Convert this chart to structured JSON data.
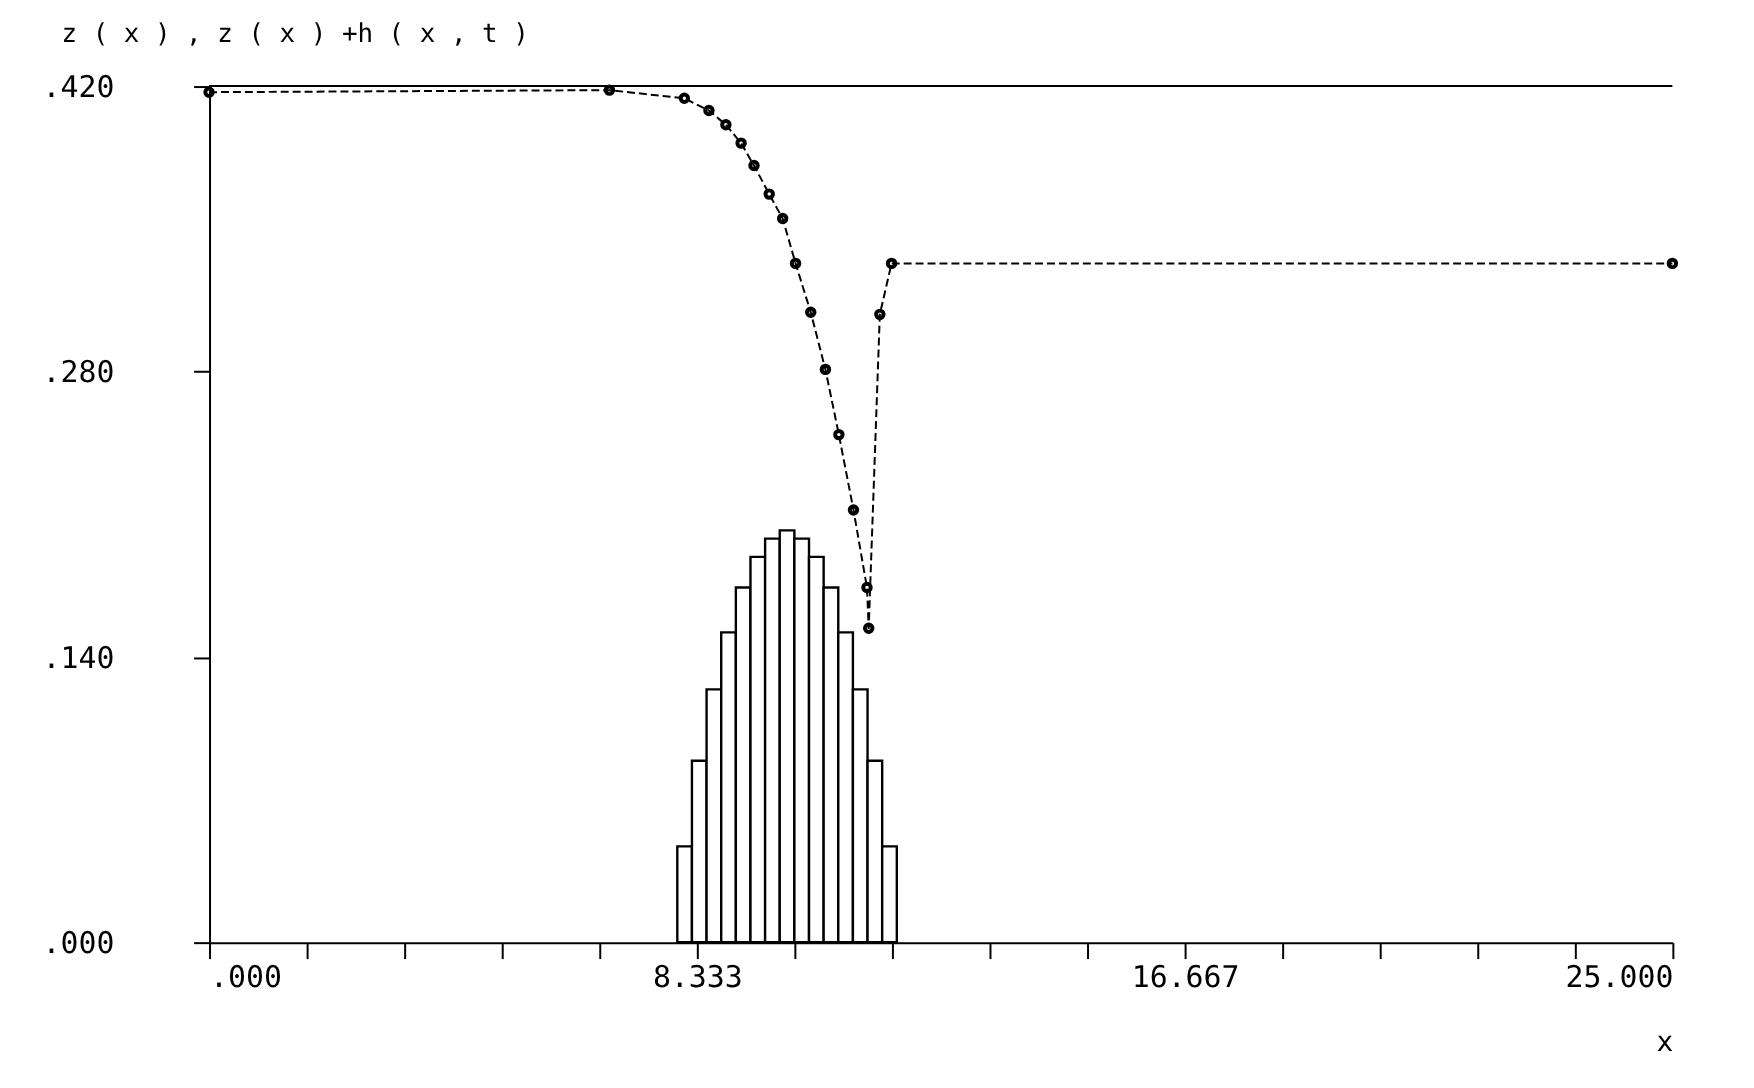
{
  "chart_data": {
    "type": "histogram",
    "title": "z ( x ) ,  z ( x ) +h ( x ,  t )",
    "xlabel": "x",
    "bins": [
      8.0,
      8.25,
      8.5,
      8.75,
      9.0,
      9.25,
      9.5,
      9.75,
      10.0,
      10.25,
      10.5,
      10.75,
      11.0,
      11.25,
      11.5,
      11.75
    ],
    "values": [
      0.047,
      0.089,
      0.124,
      0.152,
      0.174,
      0.189,
      0.198,
      0.202,
      0.198,
      0.189,
      0.174,
      0.152,
      0.124,
      0.089,
      0.047
    ],
    "color": "#000000",
    "series": [
      {
        "type": "line",
        "color": "#000000",
        "marker": "circle",
        "line_style": "dashed",
        "x": [
          0,
          6.84,
          8.12,
          8.54,
          8.83,
          9.09,
          9.31,
          9.57,
          9.8,
          10.02,
          10.28,
          10.53,
          10.76,
          11.01,
          11.24,
          11.27,
          11.46,
          11.66,
          25
        ],
        "values": [
          0.417,
          0.418,
          0.414,
          0.408,
          0.401,
          0.392,
          0.381,
          0.367,
          0.355,
          0.333,
          0.309,
          0.281,
          0.249,
          0.212,
          0.174,
          0.154,
          0.308,
          0.333,
          0.333
        ]
      }
    ],
    "xlim": [
      0,
      25
    ],
    "ylim": [
      0,
      0.42
    ],
    "xticks": [
      {
        "value": 0,
        "label": ".000"
      },
      {
        "value": 1.667,
        "label": null
      },
      {
        "value": 3.333,
        "label": null
      },
      {
        "value": 5,
        "label": null
      },
      {
        "value": 6.667,
        "label": null
      },
      {
        "value": 8.333,
        "label": "8.333"
      },
      {
        "value": 10,
        "label": null
      },
      {
        "value": 11.667,
        "label": null
      },
      {
        "value": 13.333,
        "label": null
      },
      {
        "value": 15,
        "label": null
      },
      {
        "value": 16.667,
        "label": "16.667"
      },
      {
        "value": 18.333,
        "label": null
      },
      {
        "value": 20,
        "label": null
      },
      {
        "value": 21.667,
        "label": null
      },
      {
        "value": 23.333,
        "label": null
      },
      {
        "value": 25,
        "label": "25.000"
      }
    ],
    "yticks": [
      {
        "value": 0,
        "label": ".000"
      },
      {
        "value": 0.14,
        "label": ".140"
      },
      {
        "value": 0.28,
        "label": ".280"
      },
      {
        "value": 0.42,
        "label": ".420"
      }
    ],
    "grid": false
  }
}
